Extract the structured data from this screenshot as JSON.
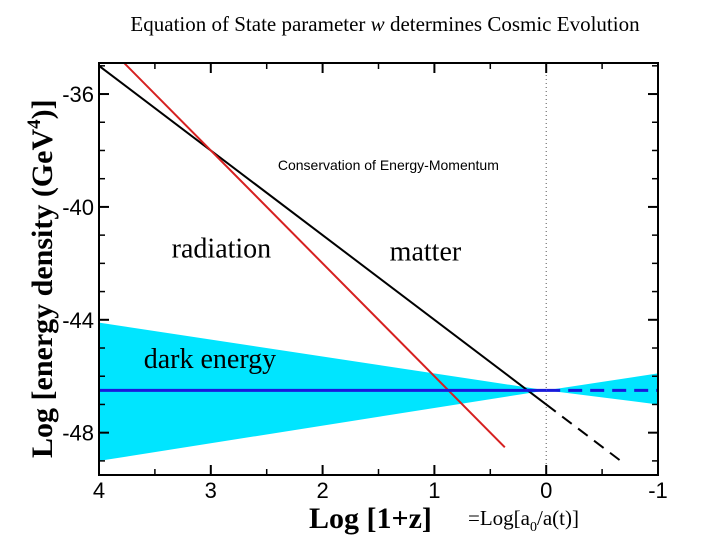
{
  "slide": {
    "title_prefix": "Equation of State parameter ",
    "title_symbol": "w",
    "title_suffix": " determines Cosmic Evolution"
  },
  "chart_data": {
    "type": "line",
    "ylabel": "Log [energy density (GeV",
    "ylabel_exp": "4",
    "ylabel_close": ")]",
    "xlabel": "Log [1+z]",
    "x_reversed": true,
    "xlim": [
      4,
      -1
    ],
    "ylim": [
      -49.5,
      -34.9
    ],
    "x_ticks": [
      4,
      3,
      2,
      1,
      0,
      -1
    ],
    "x_tick_labels": [
      "4",
      "3",
      "2",
      "1",
      "0",
      "-1"
    ],
    "y_ticks": [
      -36,
      -40,
      -44,
      -48
    ],
    "y_tick_labels": [
      "-36",
      "-40",
      "-44",
      "-48"
    ],
    "today_marker": {
      "x": 0,
      "style": "dotted"
    },
    "series": [
      {
        "name": "matter",
        "label": "matter",
        "color": "#000000",
        "slope": 3,
        "intercept": -47.0,
        "x_solid": [
          4.0,
          0
        ],
        "x_dashed": [
          0,
          -0.7
        ]
      },
      {
        "name": "radiation",
        "label": "radiation",
        "color": "#d62020",
        "slope": 4,
        "intercept": -50.0,
        "x_solid": [
          4.0,
          0.37
        ],
        "x_dashed": null
      },
      {
        "name": "dark energy",
        "label": "dark energy",
        "color": "#1a1adb",
        "slope": 0,
        "intercept": -46.5,
        "x_solid": [
          4.0,
          0
        ],
        "x_dashed": [
          0,
          -1.0
        ]
      }
    ],
    "band": {
      "name": "dark energy range",
      "color": "#00e5ff",
      "x": [
        4.0,
        0,
        -1.0
      ],
      "upper": [
        -44.1,
        -46.5,
        -45.9
      ],
      "lower": [
        -49.0,
        -46.5,
        -47.0
      ]
    },
    "annotation": "Conservation of Energy-Momentum",
    "footnote": {
      "prefix": "=Log[a",
      "sub": "0",
      "suffix": "/a(t)]"
    }
  }
}
